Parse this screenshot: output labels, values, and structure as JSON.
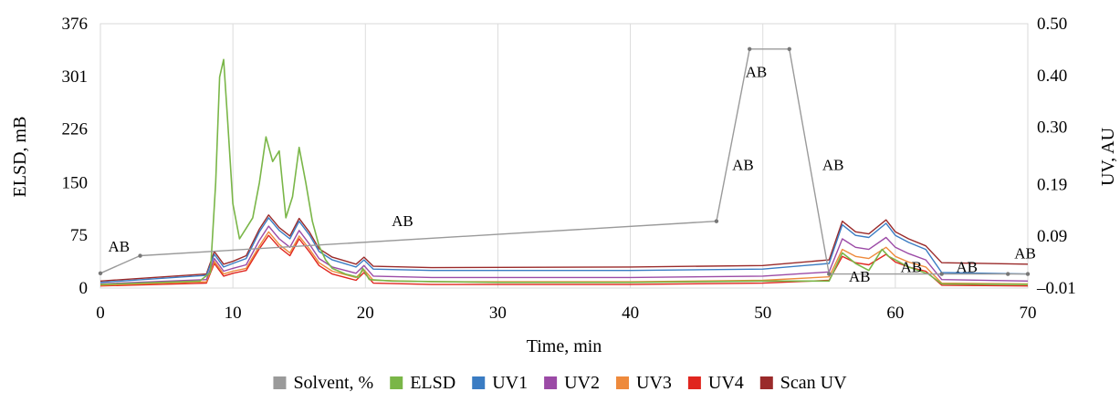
{
  "chart_data": {
    "type": "line",
    "xlabel": "Time, min",
    "ylabel": "ELSD, mB",
    "y2label": "UV, AU",
    "xlim": [
      0,
      70
    ],
    "ylim": [
      0,
      376
    ],
    "y2lim": [
      -0.01,
      0.5
    ],
    "x_ticks": [
      0,
      10,
      20,
      30,
      40,
      50,
      60,
      70
    ],
    "y_ticks": [
      0,
      75,
      150,
      226,
      301,
      376
    ],
    "y_tick_labels": [
      "0",
      "75",
      "150",
      "226",
      "301",
      "376"
    ],
    "y2_ticks": [
      -0.01,
      0.09,
      0.19,
      0.3,
      0.4,
      0.5
    ],
    "y2_tick_labels": [
      "–0.01",
      "0.09",
      "0.19",
      "0.30",
      "0.40",
      "0.50"
    ],
    "grid": "vertical",
    "legend_position": "bottom",
    "series": [
      {
        "name": "Solvent, %",
        "color": "#9a9a9a",
        "axis": "left",
        "x": [
          0,
          3,
          46.5,
          49,
          52,
          55,
          63.5,
          68.5,
          70
        ],
        "y": [
          21,
          46,
          95,
          340,
          340,
          20,
          20,
          20,
          20
        ]
      },
      {
        "name": "ELSD",
        "color": "#7ab648",
        "axis": "left",
        "x": [
          0,
          7.5,
          8.3,
          8.7,
          9.0,
          9.3,
          9.6,
          10.0,
          10.5,
          11.0,
          11.5,
          12.0,
          12.5,
          13.0,
          13.5,
          14.0,
          14.5,
          15.0,
          15.5,
          16.0,
          16.5,
          17.0,
          17.5,
          18.5,
          19.5,
          19.8,
          20.3,
          22,
          30,
          40,
          50,
          55,
          56,
          57,
          58,
          59,
          59.5,
          60,
          61,
          62.5,
          63.5,
          70
        ],
        "y": [
          5,
          10,
          22,
          150,
          300,
          325,
          240,
          120,
          70,
          85,
          100,
          150,
          215,
          180,
          195,
          100,
          130,
          200,
          150,
          95,
          60,
          40,
          28,
          20,
          15,
          28,
          12,
          10,
          8,
          8,
          10,
          10,
          50,
          35,
          25,
          55,
          45,
          40,
          30,
          20,
          6,
          5
        ]
      },
      {
        "name": "UV1",
        "color": "#3a7cc3",
        "axis": "left",
        "x": [
          0,
          8,
          8.6,
          9.3,
          10,
          11,
          12,
          12.7,
          13.5,
          14.3,
          15,
          15.8,
          16.5,
          17.5,
          19.3,
          19.9,
          20.6,
          25,
          40,
          50,
          55,
          56,
          57,
          58,
          59.3,
          60,
          61,
          62.3,
          63.5,
          70
        ],
        "y": [
          8,
          18,
          48,
          30,
          35,
          42,
          80,
          100,
          82,
          70,
          95,
          75,
          52,
          40,
          30,
          40,
          27,
          25,
          25,
          27,
          35,
          90,
          75,
          72,
          92,
          75,
          65,
          55,
          22,
          20
        ]
      },
      {
        "name": "UV2",
        "color": "#9b4aa6",
        "axis": "left",
        "x": [
          0,
          8,
          8.6,
          9.3,
          10,
          11,
          12,
          12.7,
          13.5,
          14.3,
          15,
          15.8,
          16.5,
          17.5,
          19.3,
          19.9,
          20.6,
          25,
          40,
          50,
          55,
          56,
          57,
          58,
          59.3,
          60,
          61,
          62.3,
          63.5,
          70
        ],
        "y": [
          6,
          12,
          42,
          24,
          28,
          33,
          68,
          88,
          70,
          58,
          82,
          62,
          42,
          30,
          21,
          32,
          17,
          15,
          15,
          17,
          23,
          70,
          58,
          55,
          72,
          58,
          49,
          40,
          12,
          10
        ]
      },
      {
        "name": "UV3",
        "color": "#ee8a3c",
        "axis": "left",
        "x": [
          0,
          8,
          8.6,
          9.3,
          10,
          11,
          12,
          12.7,
          13.5,
          14.3,
          15,
          15.8,
          16.5,
          17.5,
          19.3,
          19.9,
          20.6,
          25,
          40,
          50,
          55,
          56,
          57,
          58,
          59.3,
          60,
          61,
          62.3,
          63.5,
          70
        ],
        "y": [
          4,
          9,
          38,
          20,
          24,
          28,
          60,
          80,
          62,
          50,
          74,
          55,
          36,
          24,
          15,
          26,
          11,
          9,
          9,
          11,
          16,
          55,
          45,
          42,
          58,
          45,
          37,
          30,
          7,
          6
        ]
      },
      {
        "name": "UV4",
        "color": "#e0261f",
        "axis": "left",
        "x": [
          0,
          8,
          8.6,
          9.3,
          10,
          11,
          12,
          12.7,
          13.5,
          14.3,
          15,
          15.8,
          16.5,
          17.5,
          19.3,
          19.9,
          20.6,
          25,
          40,
          50,
          55,
          56,
          57,
          58,
          59.3,
          60,
          61,
          62.3,
          63.5,
          70
        ],
        "y": [
          3,
          7,
          35,
          17,
          21,
          25,
          56,
          75,
          58,
          46,
          70,
          51,
          32,
          20,
          11,
          22,
          7,
          5,
          5,
          7,
          11,
          45,
          36,
          33,
          48,
          37,
          30,
          24,
          4,
          3
        ]
      },
      {
        "name": "Scan UV",
        "color": "#9a2a2a",
        "axis": "left",
        "x": [
          0,
          8,
          8.6,
          9.3,
          10,
          11,
          12,
          12.7,
          13.5,
          14.3,
          15,
          15.8,
          16.5,
          17.5,
          19.3,
          19.9,
          20.6,
          25,
          40,
          50,
          55,
          56,
          57,
          58,
          59.3,
          60,
          61,
          62.3,
          63.5,
          70
        ],
        "y": [
          10,
          20,
          52,
          34,
          38,
          46,
          84,
          104,
          86,
          74,
          99,
          79,
          56,
          44,
          34,
          44,
          31,
          29,
          30,
          32,
          40,
          95,
          80,
          77,
          97,
          80,
          70,
          60,
          36,
          34
        ]
      }
    ],
    "annotations": [
      {
        "text": "AB",
        "x": 1.4,
        "y": 52
      },
      {
        "text": "AB",
        "x": 22.8,
        "y": 88
      },
      {
        "text": "AB",
        "x": 49.5,
        "y": 300
      },
      {
        "text": "AB",
        "x": 48.5,
        "y": 168
      },
      {
        "text": "AB",
        "x": 55.3,
        "y": 168
      },
      {
        "text": "AB",
        "x": 57.3,
        "y": 9
      },
      {
        "text": "AB",
        "x": 61.2,
        "y": 23
      },
      {
        "text": "AB",
        "x": 65.4,
        "y": 23
      },
      {
        "text": "AB",
        "x": 69.8,
        "y": 42
      }
    ]
  }
}
